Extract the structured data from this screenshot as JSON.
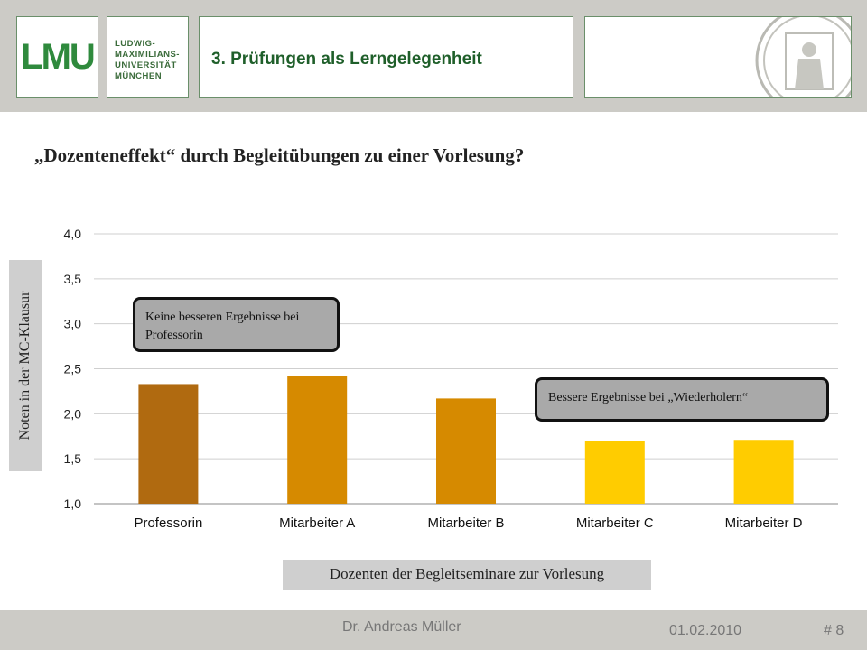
{
  "header": {
    "logo_mark": "LMU",
    "university_lines": [
      "LUDWIG-",
      "MAXIMILIANS-",
      "UNIVERSITÄT",
      "MÜNCHEN"
    ],
    "slide_title": "3. Prüfungen als Lerngelegenheit"
  },
  "heading": "„Dozenteneffekt“  durch Begleitübungen zu einer Vorlesung?",
  "chart_data": {
    "type": "bar",
    "categories": [
      "Professorin",
      "Mitarbeiter A",
      "Mitarbeiter B",
      "Mitarbeiter C",
      "Mitarbeiter D"
    ],
    "values": [
      2.33,
      2.42,
      2.17,
      1.7,
      1.71
    ],
    "bar_colors": [
      "#b06a10",
      "#d68a00",
      "#d68a00",
      "#ffcc00",
      "#ffcc00"
    ],
    "ylabel": "Noten in der MC-Klausur",
    "xlabel": "Dozenten der Begleitseminare zur Vorlesung",
    "ylim": [
      1.0,
      4.0
    ],
    "yticks": [
      "1,0",
      "1,5",
      "2,0",
      "2,5",
      "3,0",
      "3,5",
      "4,0"
    ],
    "grid": true,
    "annotations": [
      "Keine besseren Ergebnisse bei Professorin",
      "Bessere Ergebnisse bei „Wiederholern“"
    ]
  },
  "callouts": {
    "professor": "Keine besseren Ergebnisse bei Professorin",
    "repeaters": "Bessere Ergebnisse bei „Wiederholern“"
  },
  "footer": {
    "author": "Dr. Andreas Müller",
    "date": "01.02.2010",
    "page": "# 8"
  },
  "colors": {
    "header_bg": "#cccbc6",
    "brand_green": "#2f8a3d"
  }
}
